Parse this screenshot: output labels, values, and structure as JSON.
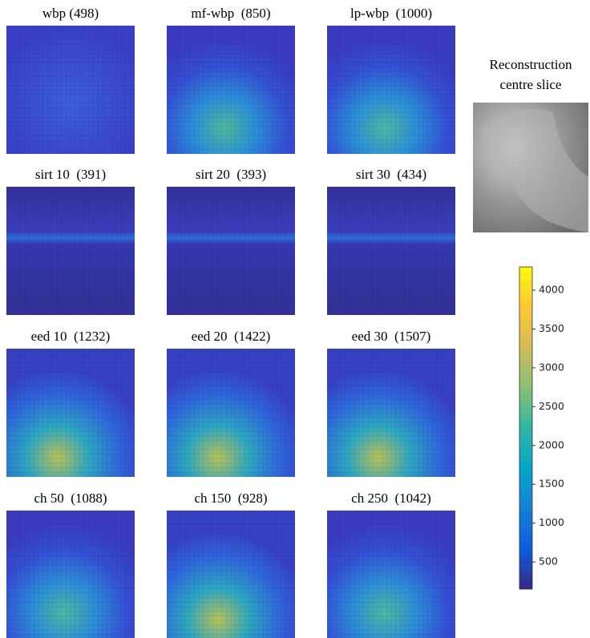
{
  "chart_data": {
    "type": "heatmap-grid",
    "panels": [
      {
        "title": "wbp (498)"
      },
      {
        "title": "mf-wbp  (850)"
      },
      {
        "title": "lp-wbp  (1000)"
      },
      {
        "title": "sirt 10  (391)"
      },
      {
        "title": "sirt 20  (393)"
      },
      {
        "title": "sirt 30  (434)"
      },
      {
        "title": "eed 10  (1232)"
      },
      {
        "title": "eed 20  (1422)"
      },
      {
        "title": "eed 30  (1507)"
      },
      {
        "title": "ch 50  (1088)"
      },
      {
        "title": "ch 150  (928)"
      },
      {
        "title": "ch 250  (1042)"
      }
    ],
    "inset_title": [
      "Reconstruction",
      "centre slice"
    ],
    "colormap": [
      "#352a87",
      "#0f5cdd",
      "#1481d6",
      "#06a4ca",
      "#2eb7a4",
      "#87bf77",
      "#d1bb59",
      "#fec832",
      "#f9fb0e"
    ],
    "clim": [
      150,
      4300
    ],
    "cticks": [
      500,
      1000,
      1500,
      2000,
      2500,
      3000,
      3500,
      4000
    ]
  }
}
